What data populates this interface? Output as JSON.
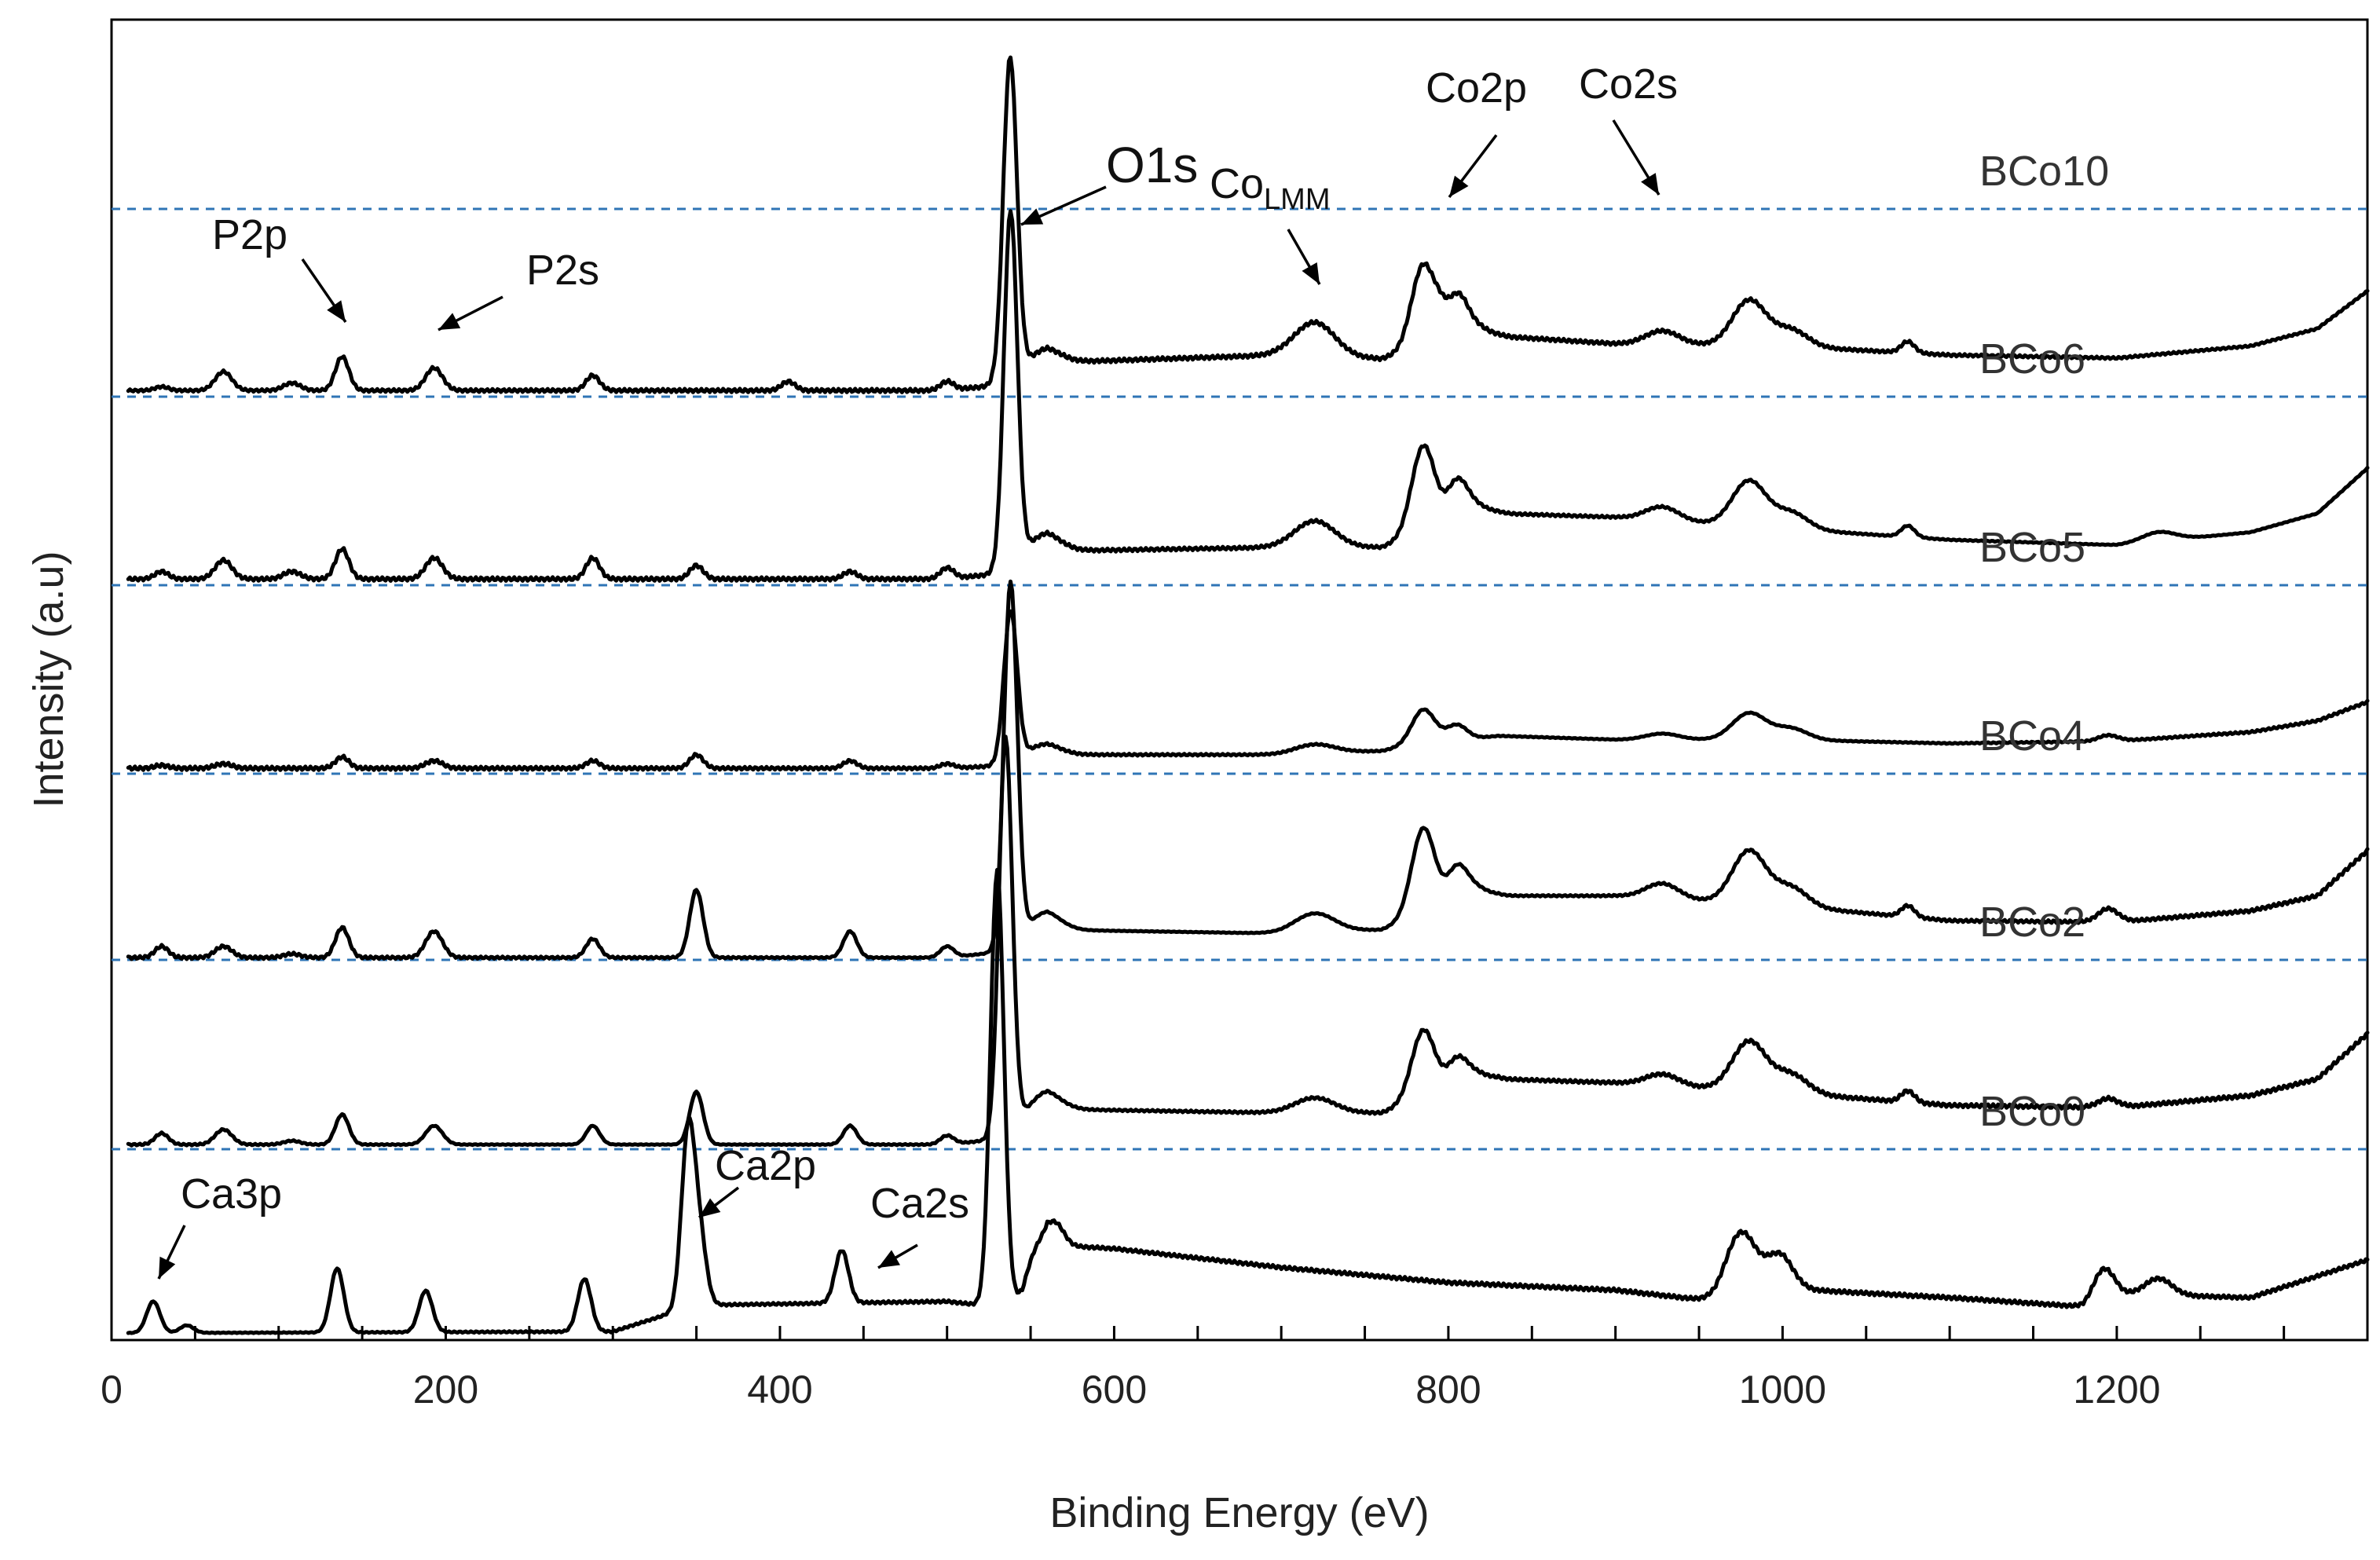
{
  "chart_data": {
    "type": "line",
    "title": "",
    "xlabel": "Binding Energy (eV)",
    "ylabel": "Intensity (a.u)",
    "xlim": [
      0,
      1350
    ],
    "x_ticks": [
      0,
      200,
      400,
      600,
      800,
      1000,
      1200
    ],
    "x_tick_labels": [
      "0",
      "200",
      "400",
      "600",
      "800",
      "1000",
      "1200"
    ],
    "minor_tick_step": 50,
    "y_tick_labels": "none",
    "stacked_offset": true,
    "series": [
      {
        "name": "BCo10",
        "level": 5,
        "scale": 1.0,
        "anchors": [
          [
            0,
            3
          ],
          [
            500,
            3
          ],
          [
            530,
            10
          ],
          [
            560,
            40
          ],
          [
            700,
            50
          ],
          [
            760,
            45
          ],
          [
            785,
            60
          ],
          [
            830,
            75
          ],
          [
            900,
            65
          ],
          [
            1000,
            62
          ],
          [
            1100,
            50
          ],
          [
            1200,
            46
          ],
          [
            1280,
            62
          ],
          [
            1320,
            85
          ],
          [
            1350,
            135
          ]
        ],
        "peaks": [
          [
            30,
            5,
            4
          ],
          [
            67,
            25,
            5
          ],
          [
            108,
            10,
            5
          ],
          [
            138,
            45,
            4
          ],
          [
            193,
            30,
            5
          ],
          [
            288,
            20,
            4
          ],
          [
            405,
            12,
            4
          ],
          [
            500,
            12,
            4
          ],
          [
            535,
            45,
            4
          ],
          [
            538,
            390,
            4
          ],
          [
            557,
            20,
            10
          ],
          [
            720,
            45,
            12
          ],
          [
            785,
            110,
            7
          ],
          [
            795,
            18,
            4
          ],
          [
            805,
            55,
            6
          ],
          [
            815,
            18,
            8
          ],
          [
            928,
            18,
            10
          ],
          [
            980,
            60,
            10
          ],
          [
            1005,
            22,
            10
          ],
          [
            1075,
            15,
            4
          ]
        ]
      },
      {
        "name": "BCo6",
        "level": 4,
        "scale": 1.0,
        "anchors": [
          [
            0,
            3
          ],
          [
            500,
            3
          ],
          [
            530,
            10
          ],
          [
            560,
            40
          ],
          [
            700,
            45
          ],
          [
            760,
            45
          ],
          [
            785,
            65
          ],
          [
            830,
            90
          ],
          [
            900,
            85
          ],
          [
            1000,
            70
          ],
          [
            1100,
            55
          ],
          [
            1200,
            48
          ],
          [
            1280,
            65
          ],
          [
            1320,
            90
          ],
          [
            1350,
            150
          ]
        ],
        "peaks": [
          [
            30,
            10,
            4
          ],
          [
            67,
            25,
            5
          ],
          [
            108,
            10,
            5
          ],
          [
            138,
            40,
            4
          ],
          [
            193,
            28,
            5
          ],
          [
            288,
            28,
            4
          ],
          [
            350,
            18,
            4
          ],
          [
            442,
            10,
            4
          ],
          [
            500,
            15,
            4
          ],
          [
            538,
            470,
            4
          ],
          [
            557,
            25,
            10
          ],
          [
            720,
            35,
            12
          ],
          [
            785,
            115,
            7
          ],
          [
            805,
            50,
            6
          ],
          [
            815,
            18,
            8
          ],
          [
            928,
            18,
            10
          ],
          [
            980,
            60,
            10
          ],
          [
            1005,
            22,
            10
          ],
          [
            1075,
            15,
            4
          ],
          [
            1225,
            12,
            10
          ]
        ]
      },
      {
        "name": "BCo5",
        "level": 3,
        "scale": 1.0,
        "anchors": [
          [
            0,
            2
          ],
          [
            500,
            2
          ],
          [
            530,
            5
          ],
          [
            560,
            20
          ],
          [
            700,
            20
          ],
          [
            760,
            25
          ],
          [
            785,
            35
          ],
          [
            830,
            45
          ],
          [
            900,
            40
          ],
          [
            1000,
            40
          ],
          [
            1100,
            35
          ],
          [
            1200,
            38
          ],
          [
            1280,
            50
          ],
          [
            1320,
            65
          ],
          [
            1350,
            90
          ]
        ],
        "peaks": [
          [
            30,
            4,
            4
          ],
          [
            67,
            6,
            5
          ],
          [
            138,
            15,
            4
          ],
          [
            193,
            10,
            5
          ],
          [
            288,
            10,
            4
          ],
          [
            350,
            18,
            4
          ],
          [
            442,
            10,
            4
          ],
          [
            500,
            6,
            4
          ],
          [
            538,
            200,
            4
          ],
          [
            557,
            15,
            10
          ],
          [
            720,
            12,
            12
          ],
          [
            785,
            45,
            7
          ],
          [
            805,
            20,
            6
          ],
          [
            928,
            8,
            10
          ],
          [
            980,
            35,
            10
          ],
          [
            1005,
            15,
            10
          ],
          [
            1195,
            8,
            6
          ]
        ]
      },
      {
        "name": "BCo4",
        "level": 2,
        "scale": 1.0,
        "anchors": [
          [
            0,
            3
          ],
          [
            500,
            3
          ],
          [
            530,
            10
          ],
          [
            560,
            40
          ],
          [
            700,
            35
          ],
          [
            760,
            40
          ],
          [
            785,
            60
          ],
          [
            830,
            85
          ],
          [
            900,
            85
          ],
          [
            1000,
            72
          ],
          [
            1100,
            52
          ],
          [
            1200,
            50
          ],
          [
            1280,
            65
          ],
          [
            1320,
            85
          ],
          [
            1350,
            145
          ]
        ],
        "peaks": [
          [
            30,
            15,
            4
          ],
          [
            67,
            15,
            5
          ],
          [
            108,
            5,
            5
          ],
          [
            138,
            40,
            4
          ],
          [
            193,
            35,
            5
          ],
          [
            288,
            25,
            4
          ],
          [
            350,
            90,
            4
          ],
          [
            442,
            35,
            4
          ],
          [
            500,
            15,
            4
          ],
          [
            538,
            480,
            4
          ],
          [
            557,
            25,
            10
          ],
          [
            720,
            25,
            12
          ],
          [
            785,
            115,
            7
          ],
          [
            805,
            45,
            6
          ],
          [
            815,
            18,
            8
          ],
          [
            928,
            20,
            10
          ],
          [
            980,
            70,
            10
          ],
          [
            1005,
            25,
            10
          ],
          [
            1075,
            15,
            4
          ],
          [
            1195,
            18,
            6
          ]
        ]
      },
      {
        "name": "BCo2",
        "level": 1,
        "scale": 1.0,
        "anchors": [
          [
            0,
            3
          ],
          [
            500,
            3
          ],
          [
            530,
            10
          ],
          [
            560,
            50
          ],
          [
            700,
            45
          ],
          [
            760,
            45
          ],
          [
            785,
            65
          ],
          [
            830,
            90
          ],
          [
            900,
            85
          ],
          [
            1000,
            72
          ],
          [
            1100,
            55
          ],
          [
            1200,
            52
          ],
          [
            1280,
            68
          ],
          [
            1320,
            90
          ],
          [
            1350,
            150
          ]
        ],
        "peaks": [
          [
            30,
            15,
            4
          ],
          [
            67,
            20,
            5
          ],
          [
            108,
            5,
            5
          ],
          [
            138,
            40,
            4
          ],
          [
            193,
            25,
            5
          ],
          [
            288,
            25,
            4
          ],
          [
            350,
            70,
            4
          ],
          [
            442,
            25,
            4
          ],
          [
            500,
            12,
            4
          ],
          [
            535,
            525,
            4
          ],
          [
            557,
            25,
            10
          ],
          [
            720,
            20,
            12
          ],
          [
            785,
            90,
            7
          ],
          [
            805,
            35,
            6
          ],
          [
            815,
            15,
            8
          ],
          [
            928,
            15,
            10
          ],
          [
            980,
            65,
            10
          ],
          [
            1005,
            25,
            10
          ],
          [
            1075,
            15,
            4
          ],
          [
            1195,
            12,
            6
          ]
        ]
      },
      {
        "name": "BCo0",
        "level": 0,
        "scale": 1.0,
        "anchors": [
          [
            0,
            3
          ],
          [
            300,
            5
          ],
          [
            350,
            40
          ],
          [
            500,
            45
          ],
          [
            520,
            40
          ],
          [
            545,
            45
          ],
          [
            560,
            120
          ],
          [
            600,
            115
          ],
          [
            700,
            90
          ],
          [
            800,
            70
          ],
          [
            900,
            60
          ],
          [
            960,
            45
          ],
          [
            1000,
            62
          ],
          [
            1100,
            50
          ],
          [
            1180,
            38
          ],
          [
            1200,
            55
          ],
          [
            1280,
            50
          ],
          [
            1350,
            100
          ]
        ],
        "peaks": [
          [
            25,
            42,
            4
          ],
          [
            45,
            10,
            4
          ],
          [
            135,
            85,
            4
          ],
          [
            188,
            55,
            4
          ],
          [
            283,
            70,
            4
          ],
          [
            345,
            230,
            4
          ],
          [
            352,
            85,
            4
          ],
          [
            437,
            70,
            4
          ],
          [
            530,
            575,
            4
          ],
          [
            552,
            30,
            6
          ],
          [
            565,
            28,
            5
          ],
          [
            975,
            85,
            9
          ],
          [
            998,
            45,
            8
          ],
          [
            1192,
            40,
            6
          ],
          [
            1225,
            22,
            8
          ]
        ]
      }
    ],
    "peak_annotations": [
      {
        "label": "O1s",
        "sub": "",
        "size": "big",
        "x": 540
      },
      {
        "label": "Co",
        "sub": "LMM",
        "size": "normal",
        "x": 720
      },
      {
        "label": "Co2p",
        "sub": "",
        "size": "normal",
        "x": 800
      },
      {
        "label": "Co2s",
        "sub": "",
        "size": "normal",
        "x": 930
      },
      {
        "label": "P2p",
        "sub": "",
        "size": "normal",
        "x": 138
      },
      {
        "label": "P2s",
        "sub": "",
        "size": "normal",
        "x": 193
      },
      {
        "label": "Ca3p",
        "sub": "",
        "size": "normal",
        "x": 30
      },
      {
        "label": "Ca2p",
        "sub": "",
        "size": "normal",
        "x": 350
      },
      {
        "label": "Ca2s",
        "sub": "",
        "size": "normal",
        "x": 456
      }
    ]
  }
}
